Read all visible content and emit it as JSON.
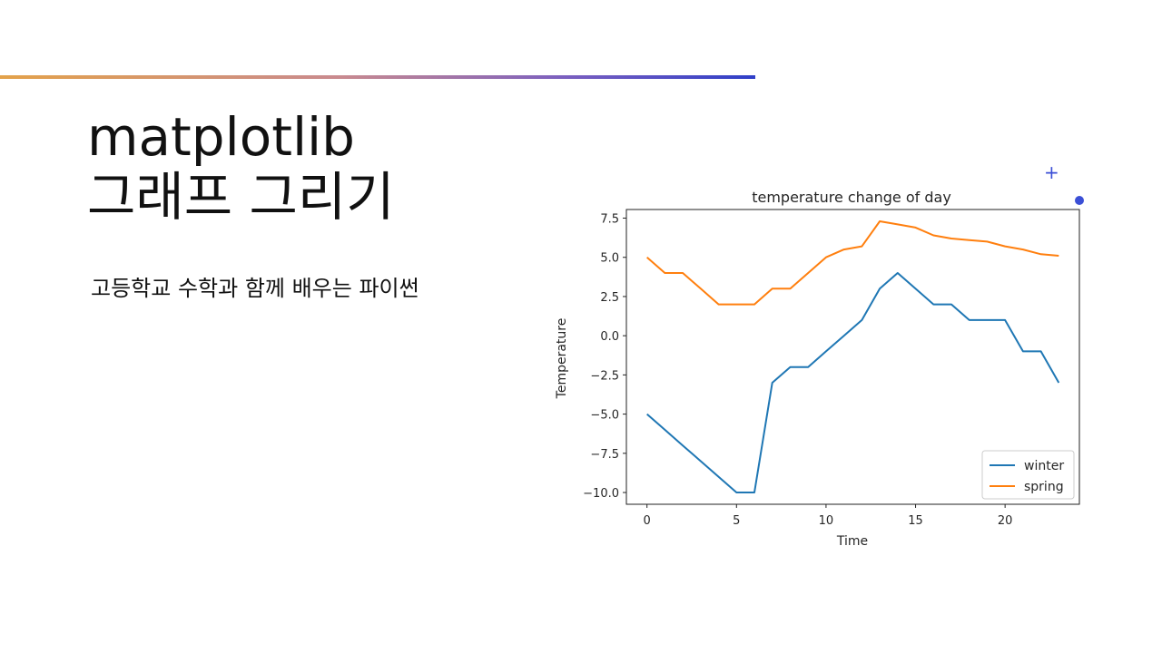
{
  "slide": {
    "title_line1": "matplotlib",
    "title_line2": "그래프 그리기",
    "subtitle": "고등학교 수학과 함께 배우는 파이썬"
  },
  "colors": {
    "accent_start": "#e3a24a",
    "accent_end": "#2f3fc8",
    "handle": "#3b4fd6",
    "winter": "#1f77b4",
    "spring": "#ff7f0e"
  },
  "chart_data": {
    "type": "line",
    "title": "temperature change of day",
    "xlabel": "Time",
    "ylabel": "Temperature",
    "xlim": [
      -1.15,
      24.15
    ],
    "ylim": [
      -10.75,
      8.05
    ],
    "xticks": [
      0,
      5,
      10,
      15,
      20
    ],
    "yticks": [
      -10.0,
      -7.5,
      -5.0,
      -2.5,
      0.0,
      2.5,
      5.0,
      7.5
    ],
    "ytick_labels": [
      "−10.0",
      "−7.5",
      "−5.0",
      "−2.5",
      "0.0",
      "2.5",
      "5.0",
      "7.5"
    ],
    "x": [
      0,
      1,
      2,
      3,
      4,
      5,
      6,
      7,
      8,
      9,
      10,
      11,
      12,
      13,
      14,
      15,
      16,
      17,
      18,
      19,
      20,
      21,
      22,
      23
    ],
    "series": [
      {
        "name": "winter",
        "color": "#1f77b4",
        "values": [
          -5,
          -6,
          -7,
          -8,
          -9,
          -10,
          -10,
          -3,
          -2,
          -2,
          -1,
          0,
          1,
          3,
          4,
          3,
          2,
          2,
          1,
          1,
          1,
          -1,
          -1,
          -3
        ]
      },
      {
        "name": "spring",
        "color": "#ff7f0e",
        "values": [
          5,
          4,
          4,
          3,
          2,
          2,
          2,
          3,
          3,
          4,
          5,
          5.5,
          5.7,
          7.3,
          7.1,
          6.9,
          6.4,
          6.2,
          6.1,
          6.0,
          5.7,
          5.5,
          5.2,
          5.1
        ]
      }
    ],
    "legend": "lower-right",
    "grid": false
  }
}
